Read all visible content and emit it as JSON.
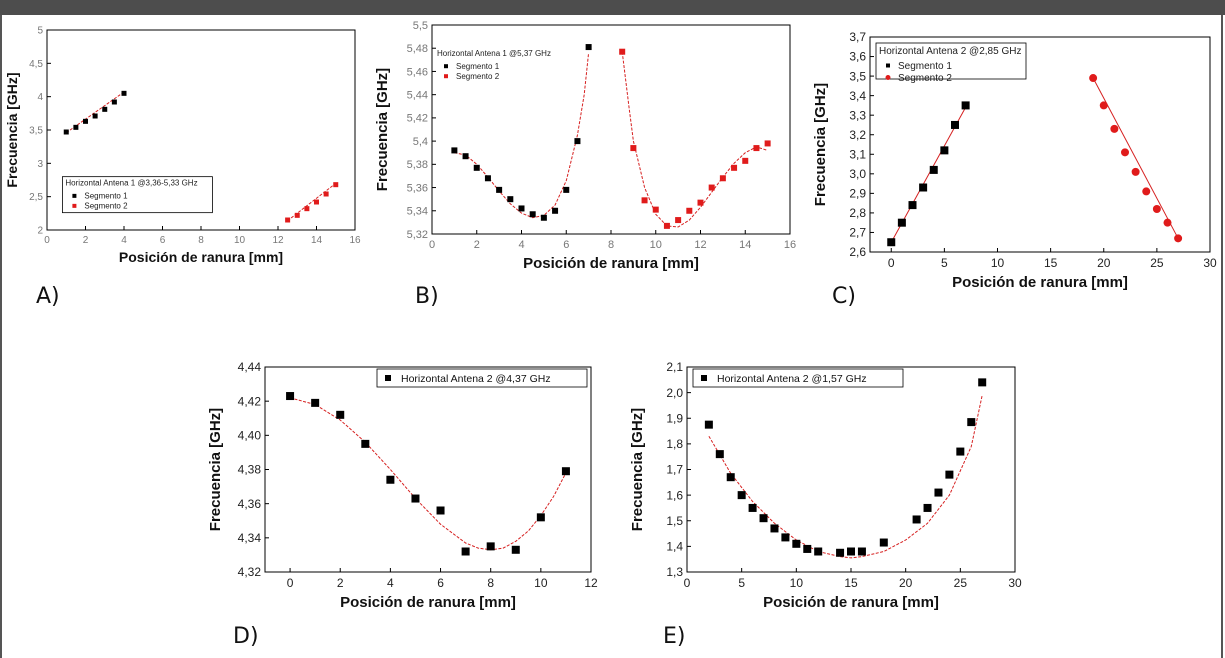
{
  "panel_labels": [
    "A)",
    "B)",
    "C)",
    "D)",
    "E)"
  ],
  "chart_data": [
    {
      "id": "A",
      "type": "scatter",
      "title": "",
      "xlabel": "Posición de ranura [mm]",
      "ylabel": "Frecuencia [GHz]",
      "xlim": [
        0,
        16
      ],
      "ylim": [
        2,
        5
      ],
      "xticks": [
        0,
        2,
        4,
        6,
        8,
        10,
        12,
        14,
        16
      ],
      "yticks": [
        2,
        2.5,
        3,
        3.5,
        4,
        4.5,
        5
      ],
      "yticklabels": [
        "2",
        "2,5",
        "3",
        "3,5",
        "4",
        "4,5",
        "5"
      ],
      "legend_title": "Horizontal Antena 1 @3,36-5,33 GHz",
      "legend_position": "bottom-left",
      "series": [
        {
          "name": "Segmento 1",
          "color": "#000000",
          "marker": "square",
          "x": [
            1,
            1.5,
            2,
            2.5,
            3,
            3.5,
            4
          ],
          "y": [
            3.47,
            3.54,
            3.63,
            3.71,
            3.81,
            3.92,
            4.05
          ],
          "fit": {
            "x": [
              1,
              4
            ],
            "y": [
              3.46,
              4.07
            ]
          }
        },
        {
          "name": "Segmento 2",
          "color": "#e01b1b",
          "marker": "square",
          "x": [
            12.5,
            13,
            13.5,
            14,
            14.5,
            15
          ],
          "y": [
            2.15,
            2.22,
            2.32,
            2.42,
            2.54,
            2.68
          ],
          "fit": {
            "x": [
              12.5,
              15
            ],
            "y": [
              2.14,
              2.7
            ]
          }
        }
      ]
    },
    {
      "id": "B",
      "type": "scatter",
      "title": "",
      "xlabel": "Posición de ranura [mm]",
      "ylabel": "Frecuencia [GHz]",
      "xlim": [
        0,
        16
      ],
      "ylim": [
        5.32,
        5.5
      ],
      "xticks": [
        0,
        2,
        4,
        6,
        8,
        10,
        12,
        14,
        16
      ],
      "yticks": [
        5.32,
        5.34,
        5.36,
        5.38,
        5.4,
        5.42,
        5.44,
        5.46,
        5.48,
        5.5
      ],
      "yticklabels": [
        "5,32",
        "5,34",
        "5,36",
        "5,38",
        "5,4",
        "5,42",
        "5,44",
        "5,46",
        "5,48",
        "5,5"
      ],
      "legend_title": "Horizontal Antena 1 @5,37 GHz",
      "legend_position": "top-left",
      "series": [
        {
          "name": "Segmento 1",
          "color": "#000000",
          "marker": "square",
          "x": [
            1,
            1.5,
            2,
            2.5,
            3,
            3.5,
            4,
            4.5,
            5,
            5.5,
            6,
            6.5,
            7
          ],
          "y": [
            5.392,
            5.387,
            5.377,
            5.368,
            5.358,
            5.35,
            5.342,
            5.337,
            5.334,
            5.34,
            5.358,
            5.4,
            5.481
          ],
          "fit": {
            "x": [
              1,
              1.5,
              2,
              2.5,
              3,
              3.5,
              4,
              4.5,
              5,
              5.5,
              6,
              6.5,
              6.8,
              7
            ],
            "y": [
              5.39,
              5.388,
              5.38,
              5.369,
              5.357,
              5.346,
              5.338,
              5.334,
              5.336,
              5.345,
              5.366,
              5.405,
              5.44,
              5.476
            ]
          }
        },
        {
          "name": "Segmento 2",
          "color": "#e01b1b",
          "marker": "square",
          "x": [
            8.5,
            9,
            9.5,
            10,
            10.5,
            11,
            11.5,
            12,
            12.5,
            13,
            13.5,
            14,
            14.5,
            15
          ],
          "y": [
            5.477,
            5.394,
            5.349,
            5.341,
            5.327,
            5.332,
            5.34,
            5.347,
            5.36,
            5.368,
            5.377,
            5.383,
            5.394,
            5.398
          ],
          "fit": {
            "x": [
              8.5,
              8.8,
              9,
              9.5,
              10,
              10.5,
              11,
              11.5,
              12,
              12.5,
              13,
              13.5,
              14,
              14.5,
              15
            ],
            "y": [
              5.477,
              5.43,
              5.4,
              5.36,
              5.337,
              5.327,
              5.326,
              5.332,
              5.343,
              5.356,
              5.369,
              5.381,
              5.39,
              5.395,
              5.392
            ]
          }
        }
      ]
    },
    {
      "id": "C",
      "type": "scatter",
      "title": "",
      "xlabel": "Posición de ranura [mm]",
      "ylabel": "Frecuencia [GHz]",
      "xlim": [
        -2,
        30
      ],
      "ylim": [
        2.6,
        3.7
      ],
      "xticks": [
        0,
        5,
        10,
        15,
        20,
        25,
        30
      ],
      "yticks": [
        2.6,
        2.7,
        2.8,
        2.9,
        3.0,
        3.1,
        3.2,
        3.3,
        3.4,
        3.5,
        3.6,
        3.7
      ],
      "yticklabels": [
        "2,6",
        "2,7",
        "2,8",
        "2,9",
        "3,0",
        "3,1",
        "3,2",
        "3,3",
        "3,4",
        "3,5",
        "3,6",
        "3,7"
      ],
      "legend_title": "Horizontal Antena 2 @2,85 GHz",
      "legend_position": "top-left",
      "series": [
        {
          "name": "Segmento 1",
          "color": "#000000",
          "marker": "square",
          "x": [
            0,
            1,
            2,
            3,
            4,
            5,
            6,
            7
          ],
          "y": [
            2.65,
            2.75,
            2.84,
            2.93,
            3.02,
            3.12,
            3.25,
            3.35
          ],
          "fit": {
            "x": [
              0,
              7
            ],
            "y": [
              2.65,
              3.34
            ]
          }
        },
        {
          "name": "Segmento 2",
          "color": "#e01b1b",
          "marker": "circle",
          "x": [
            19,
            20,
            21,
            22,
            23,
            24,
            25,
            26,
            27
          ],
          "y": [
            3.49,
            3.35,
            3.23,
            3.11,
            3.01,
            2.91,
            2.82,
            2.75,
            2.67
          ],
          "fit": {
            "x": [
              19,
              27
            ],
            "y": [
              3.49,
              2.67
            ]
          }
        }
      ]
    },
    {
      "id": "D",
      "type": "scatter",
      "title": "",
      "xlabel": "Posición de ranura [mm]",
      "ylabel": "Frecuencia [GHz]",
      "xlim": [
        -1,
        12
      ],
      "ylim": [
        4.32,
        4.44
      ],
      "xticks": [
        0,
        2,
        4,
        6,
        8,
        10,
        12
      ],
      "yticks": [
        4.32,
        4.34,
        4.36,
        4.38,
        4.4,
        4.42,
        4.44
      ],
      "yticklabels": [
        "4,32",
        "4,34",
        "4,36",
        "4,38",
        "4,40",
        "4,42",
        "4,44"
      ],
      "legend_position": "top-right",
      "series": [
        {
          "name": "Horizontal Antena 2 @4,37 GHz",
          "color": "#000000",
          "marker": "square",
          "x": [
            0,
            1,
            2,
            3,
            4,
            5,
            6,
            7,
            8,
            9,
            10,
            11
          ],
          "y": [
            4.423,
            4.419,
            4.412,
            4.395,
            4.374,
            4.363,
            4.356,
            4.332,
            4.335,
            4.333,
            4.352,
            4.379
          ],
          "fit": {
            "x": [
              0,
              1,
              2,
              3,
              4,
              5,
              6,
              7,
              7.5,
              8,
              8.5,
              9,
              9.5,
              10,
              10.5,
              11
            ],
            "y": [
              4.422,
              4.418,
              4.409,
              4.396,
              4.38,
              4.363,
              4.348,
              4.337,
              4.334,
              4.333,
              4.334,
              4.338,
              4.344,
              4.353,
              4.364,
              4.378
            ]
          }
        }
      ]
    },
    {
      "id": "E",
      "type": "scatter",
      "title": "",
      "xlabel": "Posición de ranura [mm]",
      "ylabel": "Frecuencia [GHz]",
      "xlim": [
        0,
        30
      ],
      "ylim": [
        1.3,
        2.1
      ],
      "xticks": [
        0,
        5,
        10,
        15,
        20,
        25,
        30
      ],
      "yticks": [
        1.3,
        1.4,
        1.5,
        1.6,
        1.7,
        1.8,
        1.9,
        2.0,
        2.1
      ],
      "yticklabels": [
        "1,3",
        "1,4",
        "1,5",
        "1,6",
        "1,7",
        "1,8",
        "1,9",
        "2,0",
        "2,1"
      ],
      "legend_position": "top-left",
      "series": [
        {
          "name": "Horizontal Antena 2 @1,57 GHz",
          "color": "#000000",
          "marker": "square",
          "x": [
            2,
            3,
            4,
            5,
            6,
            7,
            8,
            9,
            10,
            11,
            12,
            14,
            15,
            16,
            18,
            21,
            22,
            23,
            24,
            25,
            26,
            27
          ],
          "y": [
            1.875,
            1.76,
            1.67,
            1.6,
            1.55,
            1.51,
            1.47,
            1.435,
            1.41,
            1.39,
            1.38,
            1.375,
            1.38,
            1.38,
            1.415,
            1.505,
            1.55,
            1.61,
            1.68,
            1.77,
            1.885,
            2.04
          ],
          "fit": {
            "x": [
              2,
              4,
              6,
              8,
              10,
              12,
              14,
              15,
              16,
              18,
              20,
              22,
              24,
              26,
              27
            ],
            "y": [
              1.83,
              1.685,
              1.575,
              1.49,
              1.425,
              1.38,
              1.36,
              1.355,
              1.36,
              1.38,
              1.425,
              1.49,
              1.6,
              1.79,
              1.99
            ]
          }
        }
      ]
    }
  ]
}
